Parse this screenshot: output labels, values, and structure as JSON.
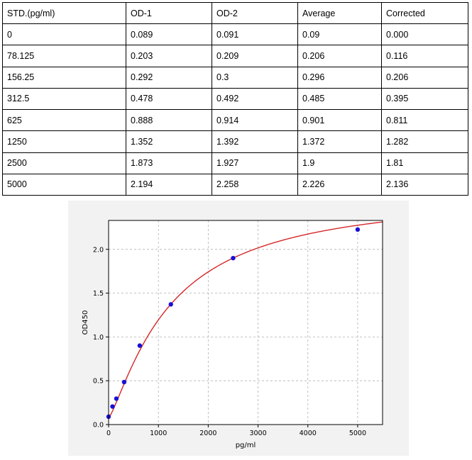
{
  "table": {
    "headers": [
      "STD.(pg/ml)",
      "OD-1",
      "OD-2",
      "Average",
      "Corrected"
    ],
    "rows": [
      [
        "0",
        "0.089",
        "0.091",
        "0.09",
        "0.000"
      ],
      [
        "78.125",
        "0.203",
        "0.209",
        "0.206",
        "0.116"
      ],
      [
        "156.25",
        "0.292",
        "0.3",
        "0.296",
        "0.206"
      ],
      [
        "312.5",
        "0.478",
        "0.492",
        "0.485",
        "0.395"
      ],
      [
        "625",
        "0.888",
        "0.914",
        "0.901",
        "0.811"
      ],
      [
        "1250",
        "1.352",
        "1.392",
        "1.372",
        "1.282"
      ],
      [
        "2500",
        "1.873",
        "1.927",
        "1.9",
        "1.81"
      ],
      [
        "5000",
        "2.194",
        "2.258",
        "2.226",
        "2.136"
      ]
    ]
  },
  "chart_data": {
    "type": "scatter",
    "title": "",
    "xlabel": "pg/ml",
    "ylabel": "OD450",
    "xlim": [
      0,
      5500
    ],
    "ylim": [
      0,
      2.33
    ],
    "xticks": [
      0,
      1000,
      2000,
      3000,
      4000,
      5000
    ],
    "yticks": [
      0.0,
      0.5,
      1.0,
      1.5,
      2.0
    ],
    "xtick_labels": [
      "0",
      "1000",
      "2000",
      "3000",
      "4000",
      "5000"
    ],
    "ytick_labels": [
      "0.0",
      "0.5",
      "1.0",
      "1.5",
      "2.0"
    ],
    "grid": true,
    "points": {
      "x": [
        0,
        78.125,
        156.25,
        312.5,
        625,
        1250,
        2500,
        5000
      ],
      "y": [
        0.09,
        0.206,
        0.296,
        0.485,
        0.901,
        1.372,
        1.9,
        2.226
      ]
    },
    "fit_curve": {
      "model": "4PL",
      "a": 0.075,
      "b": 1.25,
      "c": 1240,
      "d": 2.66
    },
    "colors": {
      "points": "#1a0fd6",
      "curve": "#d62728",
      "grid": "#b0b0b0",
      "background": "#f2f2f2"
    }
  }
}
